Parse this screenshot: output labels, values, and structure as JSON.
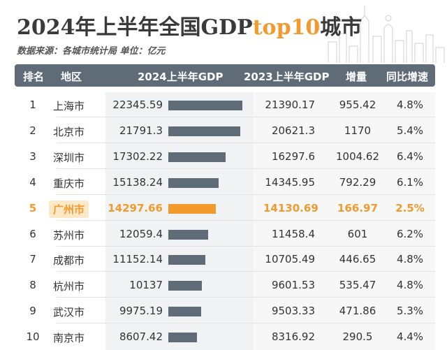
{
  "title": {
    "prefix": "2024年上半年全国GDP",
    "highlight": "top10",
    "suffix": "城市"
  },
  "subtitle": "数据来源：各城市统计局 单位：亿元",
  "header": {
    "rank": "排名",
    "region": "地区",
    "gdp2024": "2024上半年GDP",
    "gdp2023": "2023上半年GDP",
    "increase": "增量",
    "growth": "同比增速"
  },
  "colors": {
    "bar": "#5f6b77",
    "highlight": "#f29a2e",
    "header_bg": "#5f6b77"
  },
  "chart_data": {
    "type": "table",
    "highlighted_row": 5,
    "bar_max": 22345.59,
    "rows": [
      {
        "rank": "1",
        "city": "上海市",
        "gdp2024": 22345.59,
        "gdp2024_text": "22345.59",
        "gdp2023": "21390.17",
        "increase": "955.42",
        "growth": "4.8%"
      },
      {
        "rank": "2",
        "city": "北京市",
        "gdp2024": 21791.3,
        "gdp2024_text": "21791.3",
        "gdp2023": "20621.3",
        "increase": "1170",
        "growth": "5.4%"
      },
      {
        "rank": "3",
        "city": "深圳市",
        "gdp2024": 17302.22,
        "gdp2024_text": "17302.22",
        "gdp2023": "16297.6",
        "increase": "1004.62",
        "growth": "6.4%"
      },
      {
        "rank": "4",
        "city": "重庆市",
        "gdp2024": 15138.24,
        "gdp2024_text": "15138.24",
        "gdp2023": "14345.95",
        "increase": "792.29",
        "growth": "6.1%"
      },
      {
        "rank": "5",
        "city": "广州市",
        "gdp2024": 14297.66,
        "gdp2024_text": "14297.66",
        "gdp2023": "14130.69",
        "increase": "166.97",
        "growth": "2.5%"
      },
      {
        "rank": "6",
        "city": "苏州市",
        "gdp2024": 12059.4,
        "gdp2024_text": "12059.4",
        "gdp2023": "11458.4",
        "increase": "601",
        "growth": "6.2%"
      },
      {
        "rank": "7",
        "city": "成都市",
        "gdp2024": 11152.14,
        "gdp2024_text": "11152.14",
        "gdp2023": "10705.49",
        "increase": "446.65",
        "growth": "4.8%"
      },
      {
        "rank": "8",
        "city": "杭州市",
        "gdp2024": 10137,
        "gdp2024_text": "10137",
        "gdp2023": "9601.53",
        "increase": "535.47",
        "growth": "4.8%"
      },
      {
        "rank": "9",
        "city": "武汉市",
        "gdp2024": 9975.19,
        "gdp2024_text": "9975.19",
        "gdp2023": "9503.33",
        "increase": "471.86",
        "growth": "5.3%"
      },
      {
        "rank": "10",
        "city": "南京市",
        "gdp2024": 8607.42,
        "gdp2024_text": "8607.42",
        "gdp2023": "8316.92",
        "increase": "290.5",
        "growth": "4.4%"
      }
    ]
  }
}
